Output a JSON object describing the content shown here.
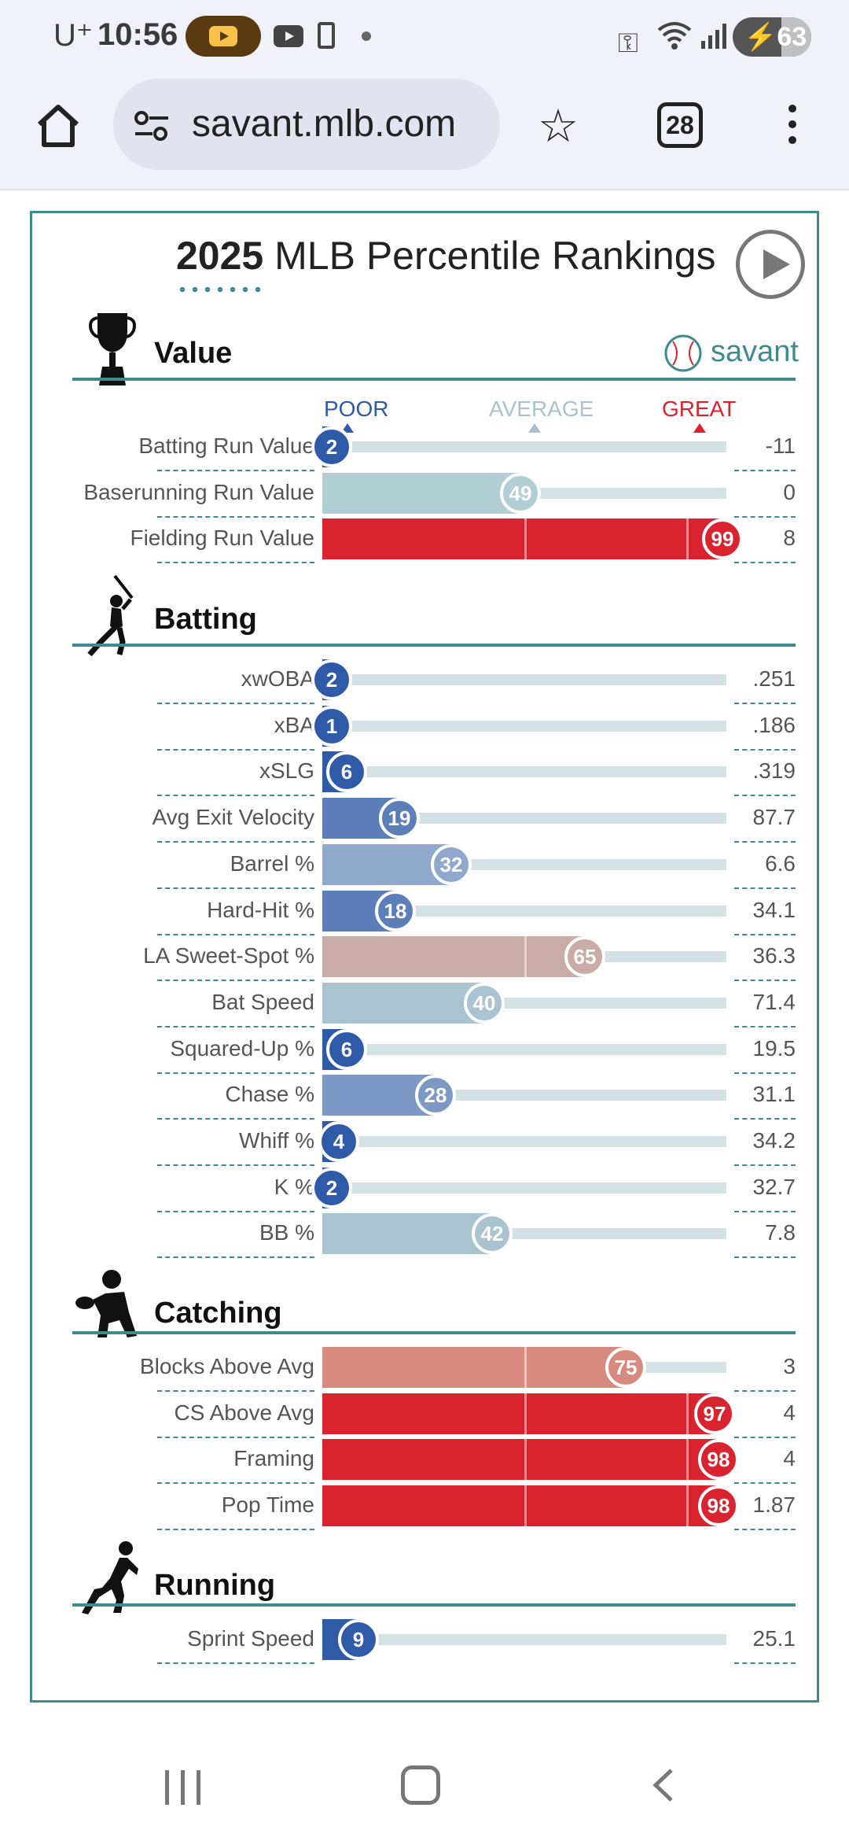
{
  "status_bar": {
    "carrier": "U⁺",
    "time": "10:56",
    "battery": "63"
  },
  "browser": {
    "url": "savant.mlb.com",
    "tab_count": "28"
  },
  "page": {
    "title_year": "2025",
    "title_rest": " MLB Percentile Rankings",
    "brand": "savant",
    "legend": {
      "poor": "POOR",
      "average": "AVERAGE",
      "great": "GREAT"
    }
  },
  "colors": {
    "poor": "#2f5aa8",
    "great": "#d9232e",
    "teal": "#3f8a8c"
  },
  "sections": [
    {
      "title": "Value",
      "icon": "trophy-icon",
      "rows": [
        {
          "label": "Batting Run Value",
          "percentile": 2,
          "value": "-11",
          "color": "#2f5aa8"
        },
        {
          "label": "Baserunning Run Value",
          "percentile": 49,
          "value": "0",
          "color": "#b1ced4"
        },
        {
          "label": "Fielding Run Value",
          "percentile": 99,
          "value": "8",
          "color": "#d9232e"
        }
      ]
    },
    {
      "title": "Batting",
      "icon": "batter-icon",
      "rows": [
        {
          "label": "xwOBA",
          "percentile": 2,
          "value": ".251",
          "color": "#2f5aa8"
        },
        {
          "label": "xBA",
          "percentile": 1,
          "value": ".186",
          "color": "#2f5aa8"
        },
        {
          "label": "xSLG",
          "percentile": 6,
          "value": ".319",
          "color": "#2f5aa8"
        },
        {
          "label": "Avg Exit Velocity",
          "percentile": 19,
          "value": "87.7",
          "color": "#5c7eb9"
        },
        {
          "label": "Barrel %",
          "percentile": 32,
          "value": "6.6",
          "color": "#8fa8cb"
        },
        {
          "label": "Hard-Hit %",
          "percentile": 18,
          "value": "34.1",
          "color": "#5c7eb9"
        },
        {
          "label": "LA Sweet-Spot %",
          "percentile": 65,
          "value": "36.3",
          "color": "#c9aca6"
        },
        {
          "label": "Bat Speed",
          "percentile": 40,
          "value": "71.4",
          "color": "#a9c3d1"
        },
        {
          "label": "Squared-Up %",
          "percentile": 6,
          "value": "19.5",
          "color": "#2f5aa8"
        },
        {
          "label": "Chase %",
          "percentile": 28,
          "value": "31.1",
          "color": "#7d98c4"
        },
        {
          "label": "Whiff %",
          "percentile": 4,
          "value": "34.2",
          "color": "#2f5aa8"
        },
        {
          "label": "K %",
          "percentile": 2,
          "value": "32.7",
          "color": "#2f5aa8"
        },
        {
          "label": "BB %",
          "percentile": 42,
          "value": "7.8",
          "color": "#a9c3d1"
        }
      ]
    },
    {
      "title": "Catching",
      "icon": "catcher-icon",
      "rows": [
        {
          "label": "Blocks Above Avg",
          "percentile": 75,
          "value": "3",
          "color": "#d78b7e"
        },
        {
          "label": "CS Above Avg",
          "percentile": 97,
          "value": "4",
          "color": "#d9232e"
        },
        {
          "label": "Framing",
          "percentile": 98,
          "value": "4",
          "color": "#d9232e"
        },
        {
          "label": "Pop Time",
          "percentile": 98,
          "value": "1.87",
          "color": "#d9232e"
        }
      ]
    },
    {
      "title": "Running",
      "icon": "runner-icon",
      "rows": [
        {
          "label": "Sprint Speed",
          "percentile": 9,
          "value": "25.1",
          "color": "#2f5aa8"
        }
      ]
    }
  ]
}
